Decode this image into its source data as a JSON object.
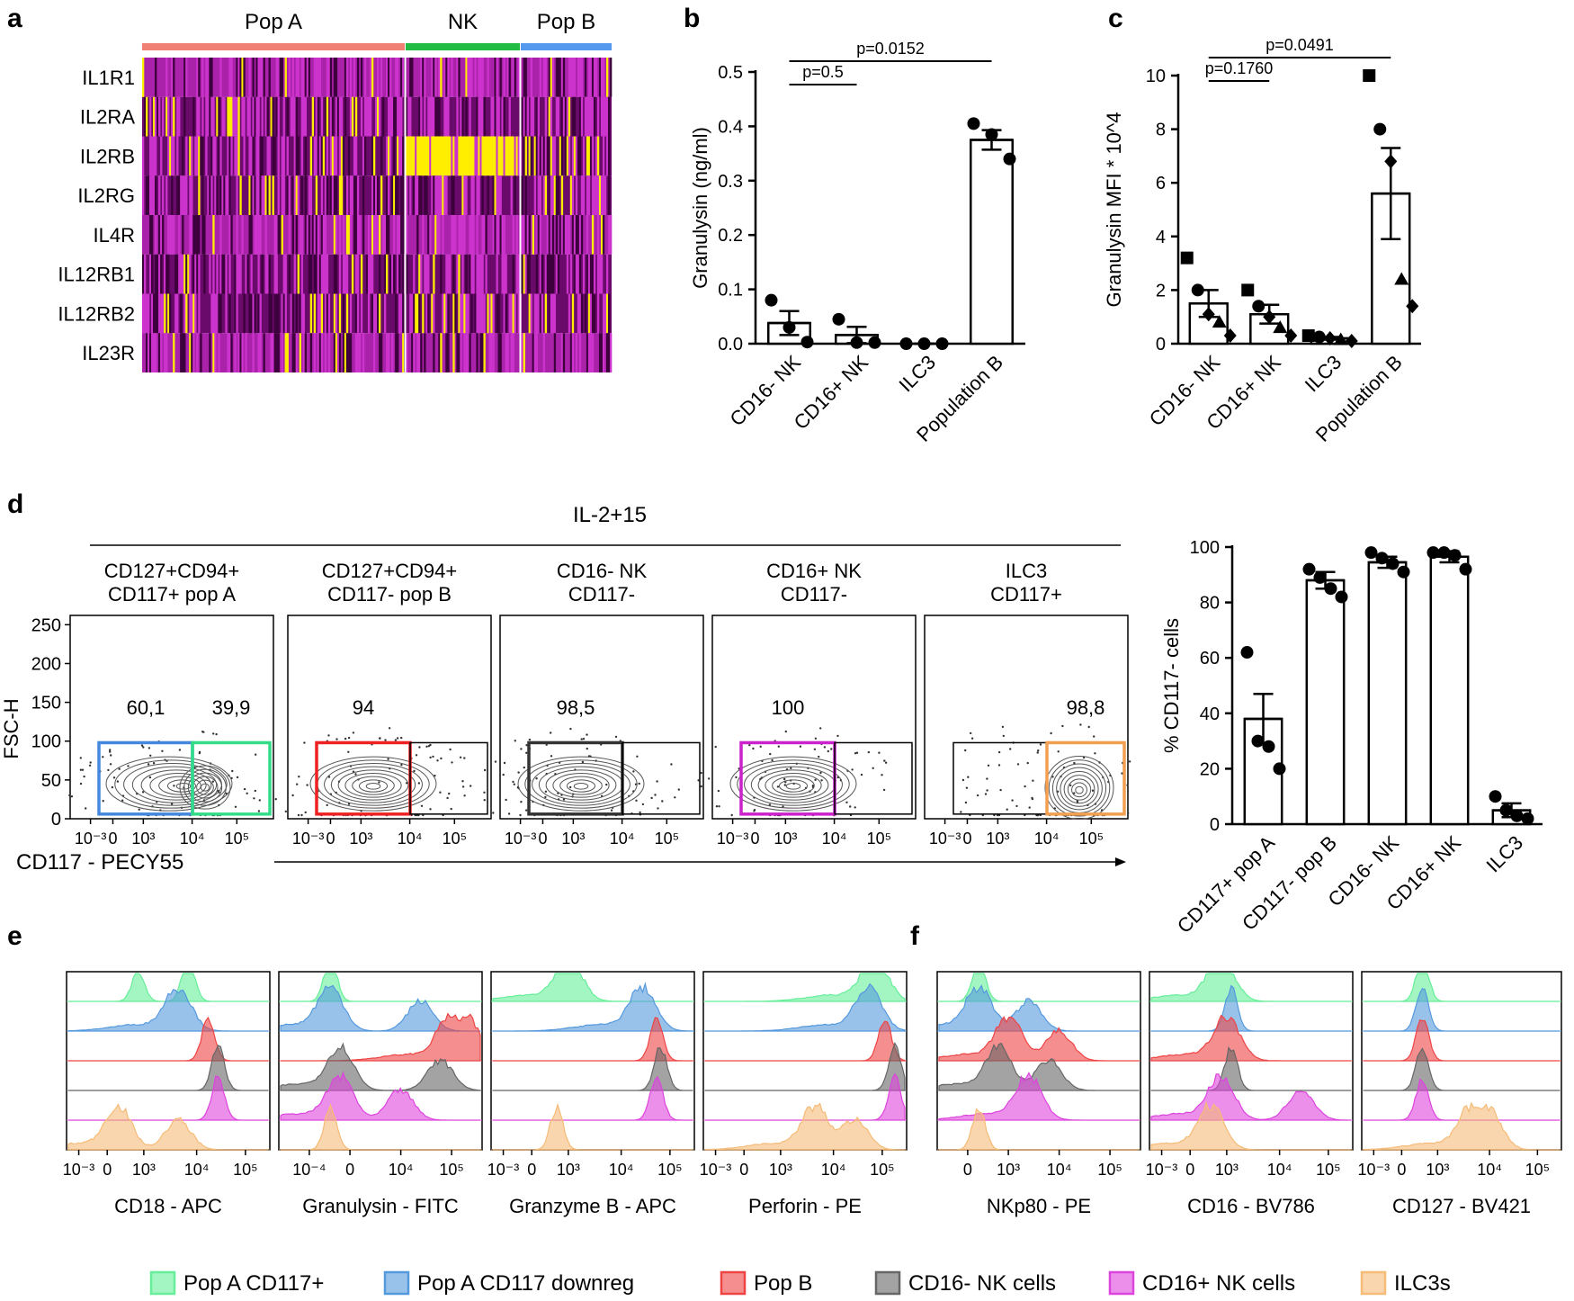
{
  "panel_letters": [
    "a",
    "b",
    "c",
    "d",
    "e",
    "f"
  ],
  "chart_data": [
    {
      "panel": "a",
      "type": "heatmap",
      "groups": [
        {
          "name": "Pop A",
          "color": "#f08075"
        },
        {
          "name": "NK",
          "color": "#22bb44"
        },
        {
          "name": "Pop B",
          "color": "#5599ee"
        }
      ],
      "rows": [
        "IL1R1",
        "IL2RA",
        "IL2RB",
        "IL2RG",
        "IL4R",
        "IL12RB1",
        "IL12RB2",
        "IL23R"
      ],
      "palette": {
        "low": "#3d003d",
        "mid": "#cc33cc",
        "high": "#ffff00"
      }
    },
    {
      "panel": "b",
      "type": "bar",
      "ylabel": "Granulysin (ng/ml)",
      "ylim": [
        0,
        0.5
      ],
      "yticks": [
        "0.0",
        "0.1",
        "0.2",
        "0.3",
        "0.4",
        "0.5"
      ],
      "categories": [
        "CD16- NK",
        "CD16+ NK",
        "ILC3",
        "Population B"
      ],
      "means": [
        0.038,
        0.016,
        0.0,
        0.375
      ],
      "sem": [
        0.022,
        0.015,
        0.0,
        0.018
      ],
      "points": [
        [
          0.08,
          0.03,
          0.003
        ],
        [
          0.045,
          0.002,
          0.002
        ],
        [
          0.0,
          0.0,
          0.0
        ],
        [
          0.405,
          0.385,
          0.34
        ]
      ],
      "comparisons": [
        {
          "from": 0,
          "to": 1,
          "label": "p=0.5"
        },
        {
          "from": 0,
          "to": 3,
          "label": "p=0.0152"
        }
      ]
    },
    {
      "panel": "c",
      "type": "bar",
      "ylabel": "Granulysin MFI * 10^4",
      "ylim": [
        0,
        10
      ],
      "yticks": [
        "0",
        "2",
        "4",
        "6",
        "8",
        "10"
      ],
      "categories": [
        "CD16- NK",
        "CD16+ NK",
        "ILC3",
        "Population B"
      ],
      "means": [
        1.5,
        1.1,
        0.2,
        5.6
      ],
      "sem": [
        0.5,
        0.35,
        0.05,
        1.7
      ],
      "points": [
        [
          3.2,
          2.0,
          1.1,
          0.8,
          0.3
        ],
        [
          2.0,
          1.4,
          1.0,
          0.6,
          0.3
        ],
        [
          0.3,
          0.25,
          0.2,
          0.15,
          0.1
        ],
        [
          10.0,
          8.0,
          6.8,
          2.4,
          1.4
        ]
      ],
      "markers": [
        "square",
        "circle",
        "diamond",
        "triangle",
        "diamond"
      ],
      "comparisons": [
        {
          "from": 0,
          "to": 1,
          "label": "p=0.1760"
        },
        {
          "from": 0,
          "to": 3,
          "label": "p=0.0491"
        }
      ]
    },
    {
      "panel": "d",
      "type": "scatter",
      "condition": "IL-2+15",
      "ylabel": "FSC-H",
      "xlabel": "CD117 - PECY55",
      "yticks": [
        "0",
        "50",
        "100",
        "150",
        "200",
        "250"
      ],
      "plots": [
        {
          "title": [
            "CD127+CD94+",
            "CD117+ pop A"
          ],
          "xticks": [
            "10⁻³",
            "0",
            "10³",
            "10⁴",
            "10⁵"
          ],
          "gates": [
            {
              "color": "#4488dd",
              "value": "60,1"
            },
            {
              "color": "#33dd88",
              "value": "39,9"
            }
          ]
        },
        {
          "title": [
            "CD127+CD94+",
            "CD117- pop B"
          ],
          "xticks": [
            "10⁻³",
            "0",
            "10³",
            "10⁴",
            "10⁵"
          ],
          "gates": [
            {
              "color": "#ee2222",
              "value": "94"
            },
            {
              "color": "#000000",
              "value": ""
            }
          ]
        },
        {
          "title": [
            "CD16- NK",
            "CD117-"
          ],
          "xticks": [
            "10⁻³",
            "0",
            "10³",
            "10⁴",
            "10⁵"
          ],
          "gates": [
            {
              "color": "#333333",
              "value": "98,5"
            },
            {
              "color": "#000000",
              "value": ""
            }
          ]
        },
        {
          "title": [
            "CD16+ NK",
            "CD117-"
          ],
          "xticks": [
            "10⁻³",
            "0",
            "10³",
            "10⁴",
            "10⁵"
          ],
          "gates": [
            {
              "color": "#cc22cc",
              "value": "100"
            },
            {
              "color": "#000000",
              "value": ""
            }
          ]
        },
        {
          "title": [
            "ILC3",
            "CD117+"
          ],
          "xticks": [
            "10⁻³",
            "0",
            "10³",
            "10⁴",
            "10⁵"
          ],
          "gates": [
            {
              "color": "#000000",
              "value": ""
            },
            {
              "color": "#f0a050",
              "value": "98,8"
            }
          ]
        }
      ]
    },
    {
      "panel": "d",
      "type": "bar",
      "ylabel": "% CD117- cells",
      "ylim": [
        0,
        100
      ],
      "yticks": [
        "0",
        "20",
        "40",
        "60",
        "80",
        "100"
      ],
      "categories": [
        "CD117+ pop A",
        "CD117- pop B",
        "CD16- NK",
        "CD16+ NK",
        "ILC3"
      ],
      "means": [
        38,
        88,
        94.5,
        96.5,
        5
      ],
      "sem": [
        9,
        3,
        2,
        2,
        2.5
      ],
      "points": [
        [
          62,
          30,
          28,
          20
        ],
        [
          92,
          89,
          85,
          82
        ],
        [
          98,
          96,
          94,
          91
        ],
        [
          98,
          98,
          97,
          92
        ],
        [
          10,
          5,
          3,
          2
        ]
      ]
    },
    {
      "panel": "e",
      "type": "area",
      "histograms": [
        {
          "xlabel": "CD18 - APC",
          "xticks": [
            "10⁻³",
            "0",
            "10³",
            "10⁴",
            "10⁵"
          ]
        },
        {
          "xlabel": "Granulysin - FITC",
          "xticks": [
            "10⁻⁴",
            "0",
            "10⁴",
            "10⁵"
          ]
        },
        {
          "xlabel": "Granzyme B - APC",
          "xticks": [
            "10⁻³",
            "0",
            "10³",
            "10⁴",
            "10⁵"
          ]
        },
        {
          "xlabel": "Perforin - PE",
          "xticks": [
            "10⁻³",
            "0",
            "10³",
            "10⁴",
            "10⁵"
          ]
        }
      ]
    },
    {
      "panel": "f",
      "type": "area",
      "histograms": [
        {
          "xlabel": "NKp80 - PE",
          "xticks": [
            "0",
            "10³",
            "10⁴",
            "10⁵"
          ]
        },
        {
          "xlabel": "CD16 - BV786",
          "xticks": [
            "10⁻³",
            "0",
            "10³",
            "10⁴",
            "10⁵"
          ]
        },
        {
          "xlabel": "CD127 - BV421",
          "xticks": [
            "10⁻³",
            "0",
            "10³",
            "10⁴",
            "10⁵"
          ]
        }
      ]
    }
  ],
  "legend": [
    {
      "name": "Pop A CD117+",
      "color": "#66ee99"
    },
    {
      "name": "Pop A CD117 downreg",
      "color": "#5599dd"
    },
    {
      "name": "Pop B",
      "color": "#ee4444"
    },
    {
      "name": "CD16- NK cells",
      "color": "#666666"
    },
    {
      "name": "CD16+ NK cells",
      "color": "#dd44dd"
    },
    {
      "name": "ILC3s",
      "color": "#f5bb77"
    }
  ]
}
